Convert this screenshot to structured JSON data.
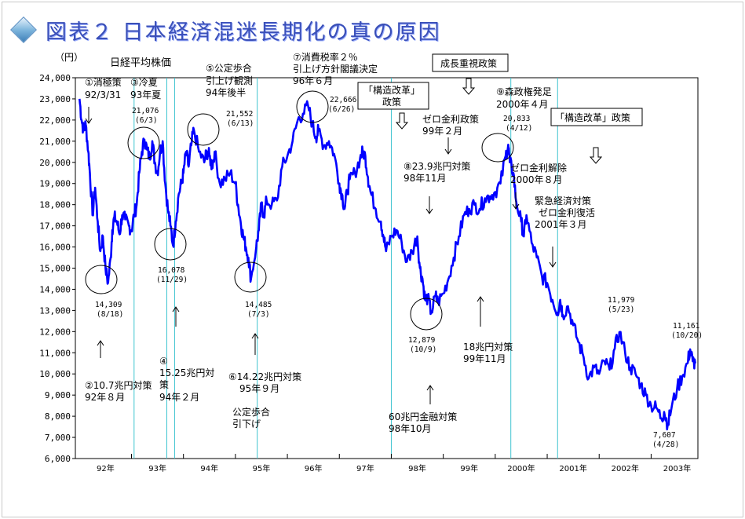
{
  "slide_title": "図表２ 日本経済混迷長期化の真の原因",
  "chart_data": {
    "type": "line",
    "title": "日経平均株価",
    "ylabel": "（円）",
    "ylim": [
      6000,
      24000
    ],
    "yticks": [
      "24,000",
      "23,000",
      "22,000",
      "21,000",
      "20,000",
      "19,000",
      "18,000",
      "17,000",
      "16,000",
      "15,000",
      "14,000",
      "13,000",
      "12,000",
      "11,000",
      "10,000",
      "9,000",
      "8,000",
      "7,000",
      "6,000"
    ],
    "ytick_values": [
      24000,
      23000,
      22000,
      21000,
      20000,
      19000,
      18000,
      17000,
      16000,
      15000,
      14000,
      13000,
      12000,
      11000,
      10000,
      9000,
      8000,
      7000,
      6000
    ],
    "xlim": [
      1991.92,
      2003.9
    ],
    "xticks": [
      {
        "label": "92年",
        "x": 1992.5
      },
      {
        "label": "93年",
        "x": 1993.5
      },
      {
        "label": "94年",
        "x": 1994.5
      },
      {
        "label": "95年",
        "x": 1995.5
      },
      {
        "label": "96年",
        "x": 1996.5
      },
      {
        "label": "97年",
        "x": 1997.5
      },
      {
        "label": "98年",
        "x": 1998.5
      },
      {
        "label": "99年",
        "x": 1999.5
      },
      {
        "label": "2000年",
        "x": 2000.5
      },
      {
        "label": "2001年",
        "x": 2001.5
      },
      {
        "label": "2002年",
        "x": 2002.5
      },
      {
        "label": "2003年",
        "x": 2003.5
      }
    ],
    "year_boundaries": [
      1993,
      1994,
      1995,
      1996,
      1997,
      1998,
      1999,
      2000,
      2001,
      2002,
      2003
    ],
    "grid": false,
    "line_color": "#0000ff",
    "event_line_color": "#3fc4d0",
    "series": [
      {
        "x": [
          1992.0,
          1992.04,
          1992.08,
          1992.12,
          1992.17,
          1992.2,
          1992.25,
          1992.3,
          1992.35,
          1992.4,
          1992.45,
          1992.5,
          1992.55,
          1992.6,
          1992.63,
          1992.67,
          1992.72,
          1992.77,
          1992.82,
          1992.88,
          1992.95,
          1993.0,
          1993.05,
          1993.1,
          1993.15,
          1993.2,
          1993.25,
          1993.3,
          1993.35,
          1993.4,
          1993.45,
          1993.5,
          1993.55,
          1993.6,
          1993.65,
          1993.7,
          1993.75,
          1993.8,
          1993.85,
          1993.91,
          1993.96,
          1994.0,
          1994.05,
          1994.1,
          1994.15,
          1994.2,
          1994.3,
          1994.4,
          1994.45,
          1994.5,
          1994.55,
          1994.6,
          1994.7,
          1994.8,
          1994.9,
          1995.0,
          1995.05,
          1995.1,
          1995.15,
          1995.2,
          1995.25,
          1995.3,
          1995.4,
          1995.45,
          1995.5,
          1995.55,
          1995.6,
          1995.7,
          1995.8,
          1995.9,
          1996.0,
          1996.1,
          1996.2,
          1996.3,
          1996.4,
          1996.48,
          1996.55,
          1996.6,
          1996.7,
          1996.8,
          1996.9,
          1997.0,
          1997.05,
          1997.1,
          1997.15,
          1997.2,
          1997.3,
          1997.4,
          1997.45,
          1997.5,
          1997.55,
          1997.6,
          1997.7,
          1997.8,
          1997.85,
          1997.9,
          1998.0,
          1998.1,
          1998.2,
          1998.3,
          1998.4,
          1998.5,
          1998.55,
          1998.6,
          1998.65,
          1998.7,
          1998.77,
          1998.85,
          1998.9,
          1999.0,
          1999.1,
          1999.2,
          1999.3,
          1999.4,
          1999.5,
          1999.6,
          1999.7,
          1999.8,
          1999.9,
          2000.0,
          2000.1,
          2000.2,
          2000.25,
          2000.28,
          2000.35,
          2000.4,
          2000.5,
          2000.55,
          2000.6,
          2000.7,
          2000.8,
          2000.9,
          2001.0,
          2001.1,
          2001.2,
          2001.25,
          2001.3,
          2001.4,
          2001.5,
          2001.6,
          2001.7,
          2001.8,
          2001.9,
          2002.0,
          2002.1,
          2002.2,
          2002.3,
          2002.39,
          2002.5,
          2002.6,
          2002.7,
          2002.8,
          2002.9,
          2003.0,
          2003.1,
          2003.2,
          2003.25,
          2003.32,
          2003.4,
          2003.5,
          2003.6,
          2003.7,
          2003.75,
          2003.8,
          2003.85
        ],
        "values": [
          23000,
          22000,
          21500,
          21800,
          20500,
          19500,
          17500,
          18800,
          17200,
          15800,
          16500,
          15000,
          14309,
          15500,
          16800,
          17400,
          17200,
          16600,
          17500,
          17300,
          17000,
          16800,
          17500,
          18000,
          19500,
          20500,
          21076,
          20600,
          20200,
          21000,
          20000,
          19500,
          20500,
          21000,
          19000,
          17800,
          17000,
          16078,
          17200,
          18500,
          19000,
          19500,
          20500,
          19800,
          20800,
          21552,
          20500,
          20000,
          20500,
          20300,
          19800,
          20500,
          19000,
          19200,
          19500,
          19000,
          18000,
          17200,
          16500,
          16000,
          15500,
          14485,
          16000,
          16800,
          18000,
          17500,
          18200,
          18000,
          18200,
          19800,
          20300,
          21000,
          22000,
          22300,
          22666,
          21800,
          21200,
          21500,
          20800,
          21000,
          20400,
          19000,
          18500,
          17800,
          18600,
          19200,
          19500,
          20200,
          20500,
          20300,
          19300,
          18600,
          17800,
          17200,
          16500,
          15800,
          16500,
          16800,
          16200,
          15300,
          15800,
          16500,
          15000,
          14500,
          13500,
          13600,
          12879,
          13700,
          13400,
          13800,
          14500,
          15500,
          16500,
          17500,
          17800,
          18000,
          17800,
          18300,
          18400,
          18600,
          19000,
          20300,
          20833,
          20000,
          19500,
          18200,
          17200,
          16500,
          17500,
          16200,
          15500,
          14600,
          14300,
          13500,
          12900,
          13500,
          12800,
          13200,
          12300,
          11500,
          10800,
          9800,
          10300,
          10000,
          10600,
          10200,
          11200,
          11979,
          11000,
          10300,
          10000,
          9500,
          9000,
          8500,
          8400,
          7900,
          8200,
          7607,
          8500,
          9300,
          9900,
          10500,
          11161,
          10600,
          10500
        ]
      }
    ]
  },
  "labels": {
    "nikkei_title": "日経平均株価",
    "unit": "（円）",
    "a1_t1": "①消極策",
    "a1_t2": "92/3/31",
    "a3_t1": "③冷夏",
    "a3_t2": "93年夏",
    "a5_t1": "⑤公定歩合",
    "a5_t2": "引上げ観測",
    "a5_t3": "94年後半",
    "a7_t1": "⑦消費税率２％",
    "a7_t2": "引上げ方針閣議決定",
    "a7_t3": "96年６月",
    "box_growth": "成長重視政策",
    "box_kaikaku1_t1": "「構造改革」",
    "box_kaikaku1_t2": "政策",
    "a9_t1": "⑨森政権発足",
    "a9_t2": "2000年４月",
    "box_kaikaku2": "「構造改革」政策",
    "zero1_t1": "ゼロ金利政策",
    "zero1_t2": "99年２月",
    "a8_t1": "⑧23.9兆円対策",
    "a8_t2": "98年11月",
    "zero2_t1": "ゼロ金利解除",
    "zero2_t2": "2000年８月",
    "emerg_t1": "緊急経済対策",
    "emerg_t2": "ゼロ金利復活",
    "emerg_t3": "2001年３月",
    "a2_t1": "②10.7兆円対策",
    "a2_t2": "92年８月",
    "a4_t1": "④",
    "a4_t2": "15.25兆円対",
    "a4_t3": "策",
    "a4_t4": "94年２月",
    "a6_t1": "⑥14.22兆円対策",
    "a6_t2": "95年９月",
    "kotei_t1": "公定歩合",
    "kotei_t2": "引下げ",
    "s18_t1": "18兆円対策",
    "s18_t2": "99年11月",
    "s60_t1": "60兆円金融対策",
    "s60_t2": "98年10月",
    "v1_t1": "14,309",
    "v1_t2": "(8/18)",
    "v2_t1": "21,076",
    "v2_t2": "(6/3)",
    "v3_t1": "16,078",
    "v3_t2": "(11/29)",
    "v4_t1": "21,552",
    "v4_t2": "(6/13)",
    "v5_t1": "14,485",
    "v5_t2": "(7/3)",
    "v6_t1": "22,666",
    "v6_t2": "(6/26)",
    "v7_t1": "12,879",
    "v7_t2": "(10/9)",
    "v8_t1": "20,833",
    "v8_t2": "(4/12)",
    "v9_t1": "11,979",
    "v9_t2": "(5/23)",
    "v10_t1": "11,161",
    "v10_t2": "(10/20)",
    "v11_t1": "7,607",
    "v11_t2": "(4/28)"
  },
  "event_lines_year": [
    1993.05,
    1993.68,
    1993.83,
    1995.42,
    1998.0,
    2000.3,
    2001.2
  ]
}
